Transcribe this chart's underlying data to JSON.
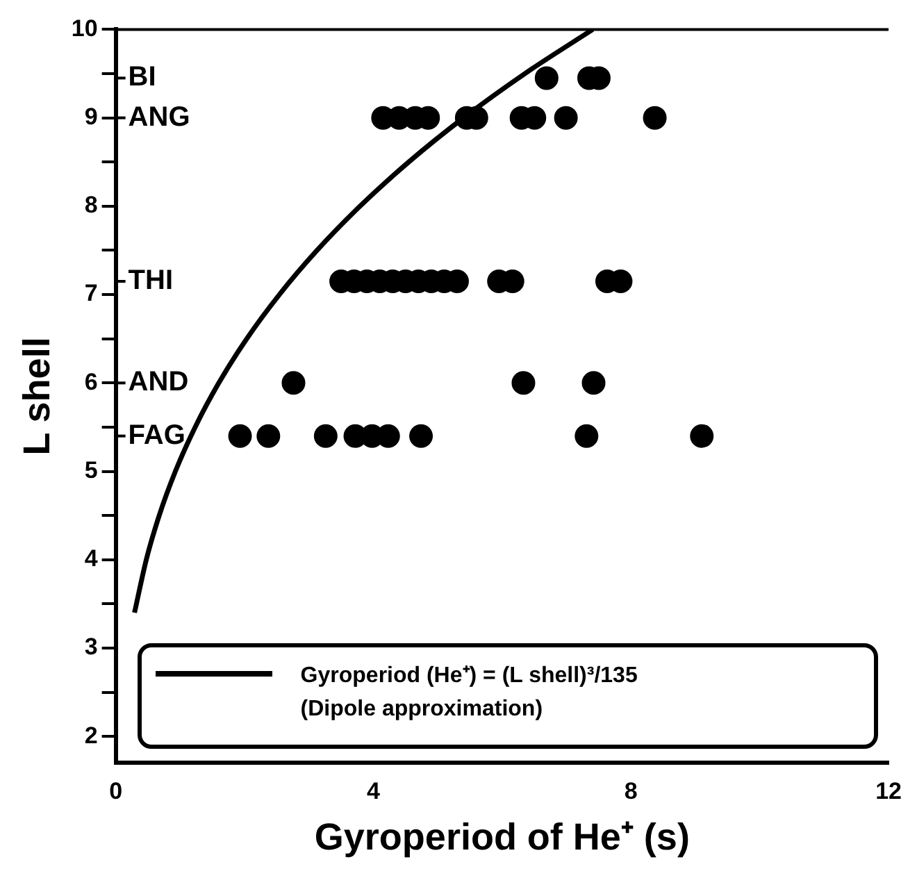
{
  "chart_data": {
    "type": "scatter",
    "xlabel": "Gyroperiod of He⁺ (s)",
    "ylabel": "L shell",
    "xlim": [
      0,
      12
    ],
    "xticks": [
      0,
      4,
      8,
      12
    ],
    "ylim": [
      1.7,
      10
    ],
    "yticks": [
      2,
      {
        "value": 2.5,
        "label": null
      },
      3,
      {
        "value": 3.5,
        "label": null
      },
      4,
      {
        "value": 4.5,
        "label": null
      },
      5,
      {
        "value": 5.5,
        "label": null
      },
      6,
      {
        "value": 6.5,
        "label": null
      },
      7,
      {
        "value": 7.5,
        "label": null
      },
      8,
      {
        "value": 8.5,
        "label": null
      },
      9,
      {
        "value": 9.5,
        "label": null
      },
      10
    ],
    "grid": false,
    "legend": "bottom",
    "marker": "circle",
    "series": [
      {
        "color": "#000000",
        "x": [
          6.69,
          7.35,
          7.5
        ],
        "values": [
          9.45,
          9.45,
          9.45
        ]
      },
      {
        "color": "#000000",
        "x": [
          4.15,
          4.4,
          4.65,
          4.85,
          5.45,
          5.6,
          6.3,
          6.5,
          6.99,
          8.37
        ],
        "values": [
          9.0,
          9.0,
          9.0,
          9.0,
          9.0,
          9.0,
          9.0,
          9.0,
          9.0,
          9.0
        ]
      },
      {
        "color": "#000000",
        "x": [
          3.5,
          3.7,
          3.9,
          4.1,
          4.3,
          4.5,
          4.7,
          4.9,
          5.1,
          5.3,
          5.95,
          6.16,
          7.63,
          7.84
        ],
        "values": [
          7.15,
          7.15,
          7.15,
          7.15,
          7.15,
          7.15,
          7.15,
          7.15,
          7.15,
          7.15,
          7.15,
          7.15,
          7.15,
          7.15
        ]
      },
      {
        "color": "#000000",
        "x": [
          2.76,
          6.33,
          7.42
        ],
        "values": [
          6.0,
          6.0,
          6.0
        ]
      },
      {
        "color": "#000000",
        "x": [
          1.93,
          2.37,
          3.26,
          3.72,
          3.98,
          4.23,
          4.74,
          7.31,
          9.1
        ],
        "values": [
          5.4,
          5.4,
          5.4,
          5.4,
          5.4,
          5.4,
          5.4,
          5.4,
          5.4
        ]
      },
      {
        "type": "line",
        "name": "Gyroperiod (He⁺) = (L shell)³/135",
        "color": "#000000",
        "marker": "none",
        "line_style": "solid",
        "x": [
          0.291,
          0.474,
          0.675,
          0.926,
          1.233,
          1.6,
          2.034,
          2.541,
          3.125,
          3.793,
          4.549,
          5.4,
          6.351,
          7.407
        ],
        "values": [
          3.4,
          4,
          4.5,
          5,
          5.5,
          6,
          6.5,
          7,
          7.5,
          8,
          8.5,
          9,
          9.5,
          10
        ]
      }
    ],
    "annotations": [
      "(Dipole approximation)",
      "BI",
      "ANG",
      "THI",
      "AND",
      "FAG"
    ]
  }
}
